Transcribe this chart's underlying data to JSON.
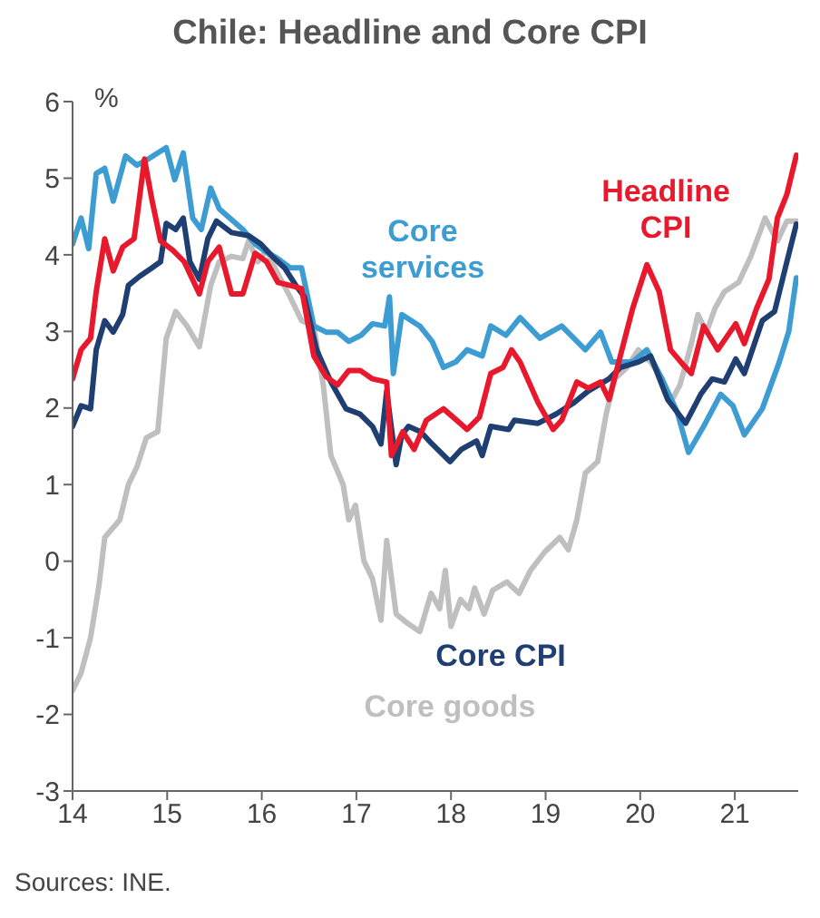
{
  "chart_data": {
    "type": "line",
    "title": "Chile: Headline and Core CPI",
    "ylabel": "%",
    "annotations": [
      "Sources: INE."
    ],
    "xlim": [
      14,
      21.67
    ],
    "xticks": [
      14,
      15,
      16,
      17,
      18,
      19,
      20,
      21
    ],
    "ylim": [
      -3,
      6
    ],
    "yticks": [
      -3,
      -2,
      -1,
      0,
      1,
      2,
      3,
      4,
      5,
      6
    ],
    "grid": false,
    "legend": false,
    "marker": "none",
    "line_style": "solid",
    "series": [
      {
        "name": "Core goods",
        "color": "#bfbfbf",
        "x": [
          14.0,
          14.09,
          14.19,
          14.28,
          14.34,
          14.5,
          14.59,
          14.68,
          14.78,
          14.9,
          14.99,
          15.09,
          15.21,
          15.34,
          15.46,
          15.55,
          15.68,
          15.8,
          15.86,
          15.96,
          16.05,
          16.17,
          16.3,
          16.42,
          16.55,
          16.65,
          16.73,
          16.86,
          16.92,
          16.99,
          17.08,
          17.17,
          17.26,
          17.32,
          17.42,
          17.54,
          17.67,
          17.79,
          17.88,
          17.94,
          18.0,
          18.1,
          18.19,
          18.25,
          18.35,
          18.44,
          18.59,
          18.72,
          18.84,
          18.99,
          19.15,
          19.24,
          19.33,
          19.42,
          19.55,
          19.64,
          19.73,
          19.86,
          19.98,
          20.11,
          20.23,
          20.32,
          20.42,
          20.54,
          20.61,
          20.7,
          20.79,
          20.89,
          21.04,
          21.17,
          21.32,
          21.45,
          21.55,
          21.65
        ],
        "values": [
          -1.69,
          -1.46,
          -1.0,
          -0.31,
          0.31,
          0.54,
          1.0,
          1.23,
          1.61,
          1.69,
          2.91,
          3.26,
          3.07,
          2.8,
          3.6,
          3.91,
          3.98,
          3.95,
          4.18,
          3.91,
          4.06,
          3.75,
          3.45,
          3.14,
          3.07,
          2.3,
          1.38,
          1.0,
          0.54,
          0.73,
          0.0,
          -0.23,
          -0.77,
          0.27,
          -0.69,
          -0.81,
          -0.92,
          -0.42,
          -0.62,
          -0.12,
          -0.85,
          -0.5,
          -0.62,
          -0.35,
          -0.69,
          -0.38,
          -0.27,
          -0.42,
          -0.12,
          0.12,
          0.31,
          0.15,
          0.54,
          1.15,
          1.3,
          1.92,
          2.38,
          2.53,
          2.76,
          2.6,
          2.38,
          2.07,
          2.3,
          2.84,
          3.22,
          2.99,
          3.3,
          3.52,
          3.64,
          3.98,
          4.48,
          4.18,
          4.44,
          4.44
        ]
      },
      {
        "name": "Core services",
        "color": "#3d9dd3",
        "x": [
          14.0,
          14.09,
          14.17,
          14.25,
          14.34,
          14.43,
          14.56,
          14.68,
          14.8,
          14.99,
          15.08,
          15.17,
          15.27,
          15.36,
          15.46,
          15.55,
          15.8,
          15.93,
          16.02,
          16.17,
          16.3,
          16.42,
          16.55,
          16.68,
          16.8,
          16.92,
          17.05,
          17.17,
          17.3,
          17.35,
          17.39,
          17.48,
          17.67,
          17.8,
          17.92,
          18.05,
          18.17,
          18.33,
          18.42,
          18.58,
          18.73,
          18.94,
          19.17,
          19.42,
          19.58,
          19.7,
          19.92,
          20.07,
          20.23,
          20.39,
          20.51,
          20.67,
          20.85,
          20.98,
          21.1,
          21.29,
          21.47,
          21.57,
          21.65
        ],
        "values": [
          4.14,
          4.48,
          4.08,
          5.06,
          5.13,
          4.7,
          5.29,
          5.17,
          5.25,
          5.4,
          4.98,
          5.33,
          4.48,
          4.33,
          4.87,
          4.6,
          4.33,
          4.14,
          4.06,
          3.95,
          3.83,
          3.83,
          3.07,
          2.99,
          2.99,
          2.87,
          2.95,
          3.1,
          3.07,
          3.45,
          2.45,
          3.22,
          3.07,
          2.87,
          2.53,
          2.6,
          2.76,
          2.68,
          3.07,
          2.95,
          3.18,
          2.91,
          3.07,
          2.76,
          2.99,
          2.6,
          2.6,
          2.76,
          2.38,
          1.95,
          1.42,
          1.76,
          2.18,
          2.03,
          1.65,
          1.99,
          2.6,
          3.0,
          3.7
        ]
      },
      {
        "name": "Core CPI",
        "color": "#1f3e72",
        "x": [
          14.0,
          14.09,
          14.19,
          14.25,
          14.34,
          14.43,
          14.53,
          14.59,
          14.71,
          14.84,
          14.93,
          14.99,
          15.09,
          15.17,
          15.24,
          15.34,
          15.43,
          15.52,
          15.68,
          15.86,
          15.99,
          16.11,
          16.24,
          16.36,
          16.45,
          16.58,
          16.73,
          16.89,
          17.04,
          17.17,
          17.26,
          17.32,
          17.42,
          17.48,
          17.55,
          17.68,
          17.8,
          17.99,
          18.11,
          18.27,
          18.33,
          18.42,
          18.61,
          18.67,
          18.92,
          19.11,
          19.3,
          19.45,
          19.67,
          19.79,
          19.98,
          20.11,
          20.29,
          20.48,
          20.64,
          20.76,
          20.89,
          21.01,
          21.1,
          21.29,
          21.42,
          21.55,
          21.65
        ],
        "values": [
          1.76,
          2.03,
          1.99,
          2.76,
          3.14,
          2.99,
          3.22,
          3.6,
          3.72,
          3.83,
          3.91,
          4.41,
          4.33,
          4.48,
          3.91,
          3.68,
          4.21,
          4.44,
          4.29,
          4.25,
          4.14,
          3.98,
          3.83,
          3.6,
          3.45,
          2.76,
          2.34,
          1.99,
          1.92,
          1.76,
          1.53,
          2.22,
          1.26,
          1.65,
          1.76,
          1.69,
          1.53,
          1.3,
          1.46,
          1.57,
          1.38,
          1.76,
          1.72,
          1.84,
          1.8,
          1.92,
          2.07,
          2.22,
          2.38,
          2.53,
          2.6,
          2.68,
          2.11,
          1.8,
          2.18,
          2.38,
          2.34,
          2.64,
          2.45,
          3.14,
          3.26,
          3.91,
          4.4
        ]
      },
      {
        "name": "Headline CPI",
        "color": "#e8192c",
        "x": [
          14.0,
          14.09,
          14.19,
          14.25,
          14.34,
          14.43,
          14.53,
          14.65,
          14.68,
          14.76,
          14.84,
          14.93,
          15.06,
          15.18,
          15.34,
          15.43,
          15.55,
          15.68,
          15.8,
          15.93,
          16.05,
          16.17,
          16.3,
          16.42,
          16.55,
          16.68,
          16.8,
          16.92,
          17.04,
          17.17,
          17.32,
          17.37,
          17.49,
          17.61,
          17.74,
          17.92,
          18.17,
          18.3,
          18.42,
          18.55,
          18.64,
          18.73,
          18.92,
          19.08,
          19.17,
          19.33,
          19.45,
          19.58,
          19.67,
          19.79,
          19.92,
          20.07,
          20.2,
          20.32,
          20.45,
          20.54,
          20.67,
          20.82,
          21.01,
          21.1,
          21.23,
          21.36,
          21.45,
          21.55,
          21.65
        ],
        "values": [
          2.38,
          2.76,
          2.91,
          3.52,
          4.21,
          3.79,
          4.1,
          4.21,
          4.48,
          5.25,
          4.71,
          4.18,
          4.06,
          3.91,
          3.49,
          3.91,
          4.1,
          3.49,
          3.49,
          4.02,
          3.91,
          3.64,
          3.6,
          3.56,
          2.68,
          2.41,
          2.3,
          2.49,
          2.49,
          2.38,
          2.34,
          1.38,
          1.69,
          1.46,
          1.84,
          1.99,
          1.72,
          1.88,
          2.45,
          2.53,
          2.76,
          2.6,
          2.07,
          1.72,
          1.84,
          2.34,
          2.26,
          2.34,
          2.11,
          2.68,
          3.3,
          3.87,
          3.52,
          2.76,
          2.57,
          2.45,
          3.07,
          2.76,
          3.1,
          2.84,
          3.3,
          3.68,
          4.48,
          4.79,
          5.3
        ]
      }
    ]
  }
}
